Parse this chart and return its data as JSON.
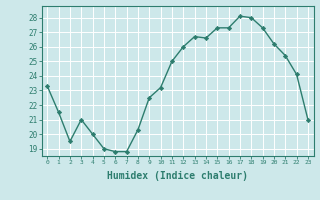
{
  "x": [
    0,
    1,
    2,
    3,
    4,
    5,
    6,
    7,
    8,
    9,
    10,
    11,
    12,
    13,
    14,
    15,
    16,
    17,
    18,
    19,
    20,
    21,
    22,
    23
  ],
  "y": [
    23.3,
    21.5,
    19.5,
    21.0,
    20.0,
    19.0,
    18.8,
    18.8,
    20.3,
    22.5,
    23.2,
    25.0,
    26.0,
    26.7,
    26.6,
    27.3,
    27.3,
    28.1,
    28.0,
    27.3,
    26.2,
    25.4,
    24.1,
    21.0
  ],
  "line_color": "#2d7d6e",
  "marker": "D",
  "markersize": 2.2,
  "linewidth": 1.0,
  "xlabel": "Humidex (Indice chaleur)",
  "xlabel_fontsize": 7,
  "ytick_labels": [
    "19",
    "20",
    "21",
    "22",
    "23",
    "24",
    "25",
    "26",
    "27",
    "28"
  ],
  "ytick_values": [
    19,
    20,
    21,
    22,
    23,
    24,
    25,
    26,
    27,
    28
  ],
  "xlim": [
    -0.5,
    23.5
  ],
  "ylim": [
    18.5,
    28.8
  ],
  "bg_color": "#cde8ea",
  "grid_color": "#ffffff",
  "tick_color": "#2d7d6e",
  "label_color": "#2d7d6e",
  "xtick_fontsize": 4.5,
  "ytick_fontsize": 5.5
}
